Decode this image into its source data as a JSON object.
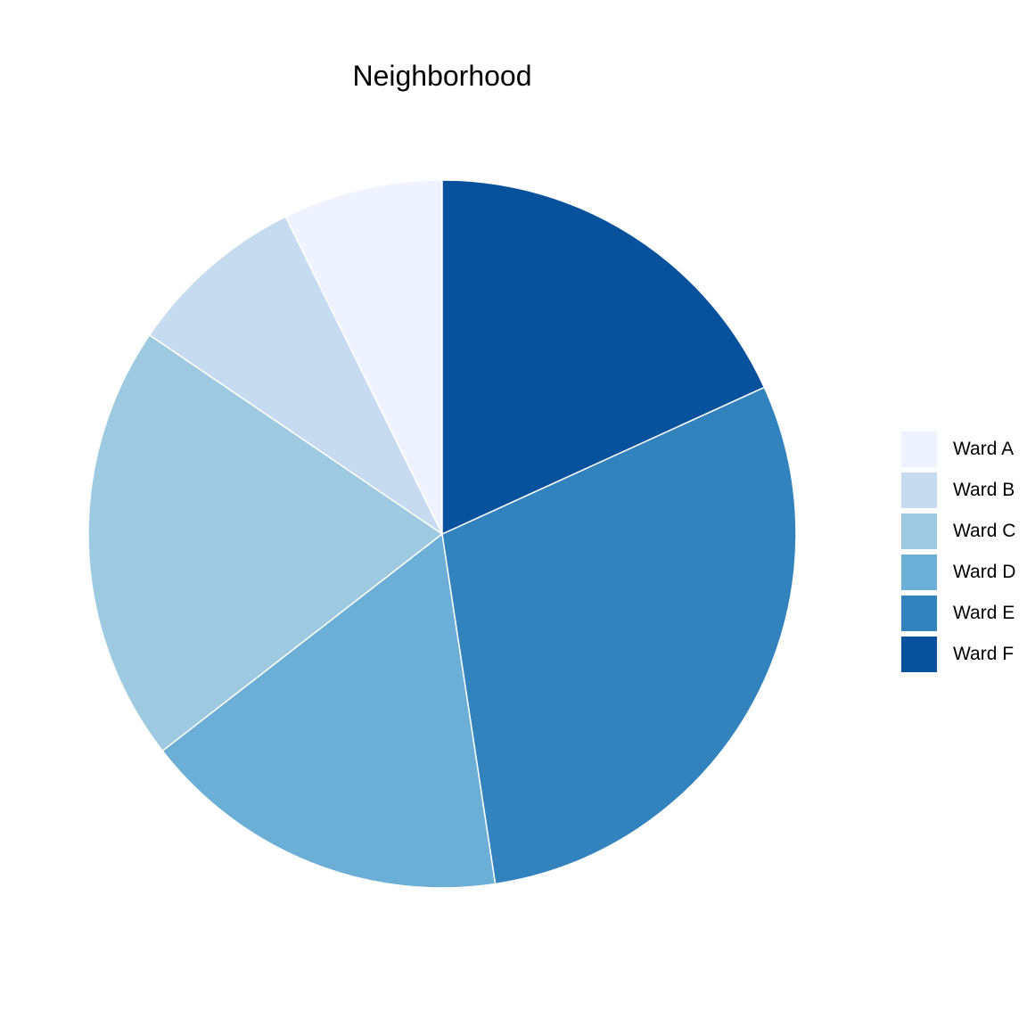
{
  "chart_data": {
    "type": "pie",
    "title": "Neighborhood",
    "categories": [
      "Ward A",
      "Ward B",
      "Ward C",
      "Ward D",
      "Ward E",
      "Ward F"
    ],
    "values": [
      7.3,
      8.2,
      20.0,
      16.9,
      29.4,
      18.2
    ],
    "colors": [
      "#EFF3FF",
      "#C6DBEF",
      "#9ECAE1",
      "#6BAED6",
      "#3182BD",
      "#08519C"
    ],
    "start_angle_deg": 0,
    "direction": "counterclockwise",
    "slice_border_color": "#FFFFFF",
    "legend_placement": "right"
  }
}
